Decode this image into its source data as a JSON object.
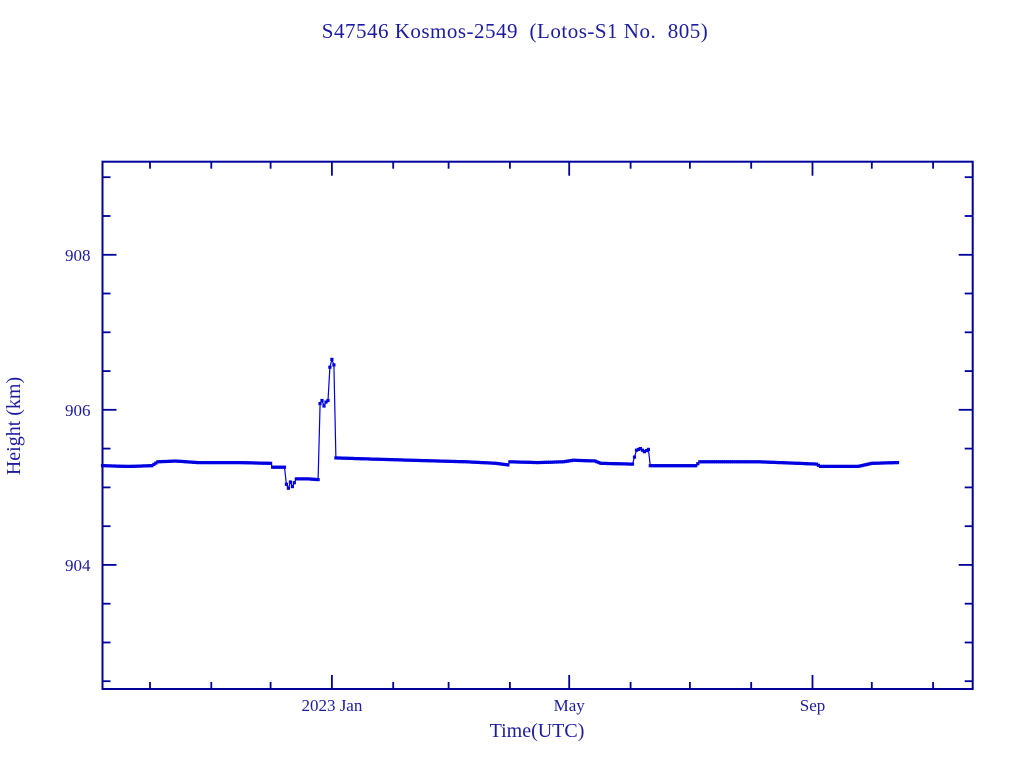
{
  "window": {
    "background": "#ffffff"
  },
  "colors": {
    "axis": "#00009b",
    "text": "#1c1c9e",
    "series": "#0000e0",
    "background": "#ffffff"
  },
  "chart_data": {
    "type": "line",
    "title": "S47546 Kosmos-2549  (Lotos-S1 No.  805)",
    "xlabel": "Time(UTC)",
    "ylabel": "Height (km)",
    "grid": false,
    "legend": false,
    "marker": "square",
    "x_axis": {
      "start_date": "2022-09-07",
      "end_date": "2023-11-21",
      "minor_ticks": "monthly",
      "major_ticks": [
        {
          "date": "2023-01-01",
          "label": "2023 Jan"
        },
        {
          "date": "2023-05-01",
          "label": "May"
        },
        {
          "date": "2023-09-01",
          "label": "Sep"
        }
      ]
    },
    "y_axis": {
      "min": 902.4,
      "max": 909.2,
      "minor_tick_step": 0.5,
      "major_ticks": [
        {
          "value": 904,
          "label": "904"
        },
        {
          "value": 906,
          "label": "906"
        },
        {
          "value": 908,
          "label": "908"
        }
      ]
    },
    "series": [
      {
        "name": "height_km",
        "color": "#0000e0",
        "points": [
          [
            "2022-09-07",
            905.28
          ],
          [
            "2022-09-20",
            905.27
          ],
          [
            "2022-10-02",
            905.28
          ],
          [
            "2022-10-05",
            905.33
          ],
          [
            "2022-10-14",
            905.34
          ],
          [
            "2022-10-25",
            905.32
          ],
          [
            "2022-11-15",
            905.32
          ],
          [
            "2022-12-01",
            905.31
          ],
          [
            "2022-12-02",
            905.26
          ],
          [
            "2022-12-08",
            905.26
          ],
          [
            "2022-12-09",
            905.04
          ],
          [
            "2022-12-10",
            904.99
          ],
          [
            "2022-12-11",
            905.07
          ],
          [
            "2022-12-12",
            905.01
          ],
          [
            "2022-12-13",
            905.06
          ],
          [
            "2022-12-14",
            905.11
          ],
          [
            "2022-12-20",
            905.11
          ],
          [
            "2022-12-25",
            905.1
          ],
          [
            "2022-12-26",
            906.08
          ],
          [
            "2022-12-27",
            906.12
          ],
          [
            "2022-12-28",
            906.05
          ],
          [
            "2022-12-29",
            906.1
          ],
          [
            "2022-12-30",
            906.12
          ],
          [
            "2022-12-31",
            906.55
          ],
          [
            "2023-01-01",
            906.65
          ],
          [
            "2023-01-02",
            906.58
          ],
          [
            "2023-01-03",
            905.38
          ],
          [
            "2023-01-15",
            905.37
          ],
          [
            "2023-02-10",
            905.35
          ],
          [
            "2023-03-10",
            905.33
          ],
          [
            "2023-03-25",
            905.31
          ],
          [
            "2023-03-31",
            905.29
          ],
          [
            "2023-04-01",
            905.33
          ],
          [
            "2023-04-15",
            905.32
          ],
          [
            "2023-04-28",
            905.33
          ],
          [
            "2023-05-03",
            905.35
          ],
          [
            "2023-05-14",
            905.34
          ],
          [
            "2023-05-17",
            905.31
          ],
          [
            "2023-06-02",
            905.3
          ],
          [
            "2023-06-04",
            905.48
          ],
          [
            "2023-06-06",
            905.5
          ],
          [
            "2023-06-08",
            905.46
          ],
          [
            "2023-06-10",
            905.49
          ],
          [
            "2023-06-11",
            905.28
          ],
          [
            "2023-07-04",
            905.28
          ],
          [
            "2023-07-06",
            905.33
          ],
          [
            "2023-08-05",
            905.33
          ],
          [
            "2023-08-25",
            905.31
          ],
          [
            "2023-09-03",
            905.3
          ],
          [
            "2023-09-05",
            905.27
          ],
          [
            "2023-09-24",
            905.27
          ],
          [
            "2023-10-01",
            905.31
          ],
          [
            "2023-10-14",
            905.32
          ]
        ]
      }
    ]
  }
}
